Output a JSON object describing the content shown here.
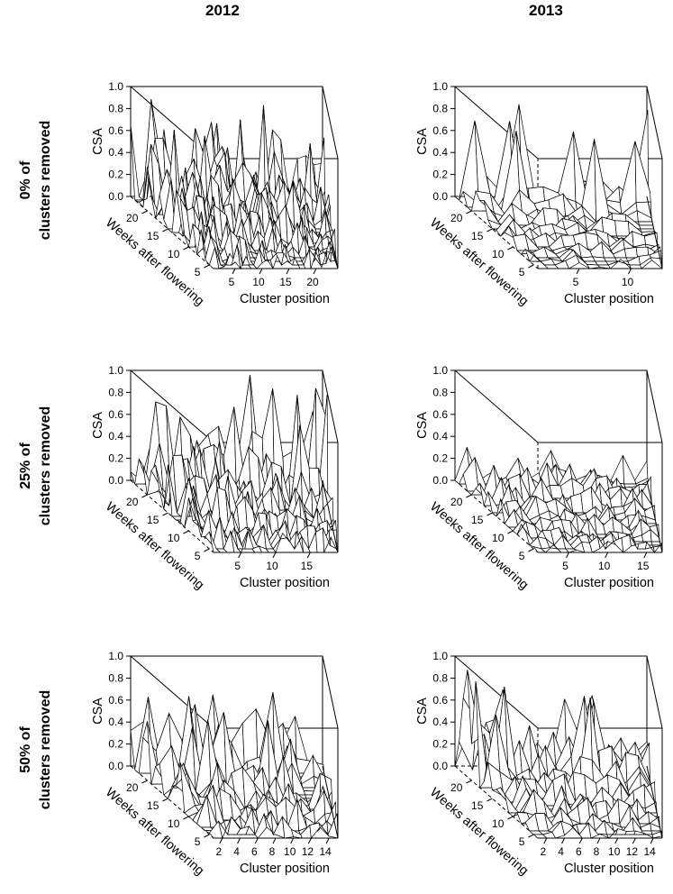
{
  "columns": [
    {
      "title": "2012"
    },
    {
      "title": "2013"
    }
  ],
  "rows": [
    {
      "label_line1": "0% of",
      "label_line2": "clusters removed"
    },
    {
      "label_line1": "25% of",
      "label_line2": "clusters removed"
    },
    {
      "label_line1": "50% of",
      "label_line2": "clusters removed"
    }
  ],
  "chart_data": [
    {
      "type": "surface3d",
      "year": "2012",
      "removed": "0%",
      "zlabel": "CSA",
      "ylabel": "Weeks after flowering",
      "xlabel": "Cluster position",
      "z_ticks": [
        "0.0",
        "0.2",
        "0.4",
        "0.6",
        "0.8",
        "1.0"
      ],
      "y_ticks": [
        "5",
        "10",
        "15",
        "20"
      ],
      "x_ticks": [
        "5",
        "10",
        "15",
        "20"
      ],
      "x_range": [
        1,
        24
      ],
      "y_range": [
        4,
        24
      ],
      "z_range": [
        0,
        1
      ],
      "cluster_positions": 24,
      "weeks": 21,
      "seed": 11,
      "amp_min": 0.18,
      "amp_max": 0.75,
      "peaks": 1.0
    },
    {
      "type": "surface3d",
      "year": "2013",
      "removed": "0%",
      "zlabel": "CSA",
      "ylabel": "Weeks after flowering",
      "xlabel": "Cluster position",
      "z_ticks": [
        "0.0",
        "0.2",
        "0.4",
        "0.6",
        "0.8",
        "1.0"
      ],
      "y_ticks": [
        "5",
        "10",
        "15",
        "20"
      ],
      "x_ticks": [
        "5",
        "10"
      ],
      "x_range": [
        1,
        13
      ],
      "y_range": [
        4,
        24
      ],
      "z_range": [
        0,
        1
      ],
      "cluster_positions": 13,
      "weeks": 21,
      "seed": 23,
      "amp_min": 0.1,
      "amp_max": 0.3,
      "peaks": 1.0
    },
    {
      "type": "surface3d",
      "year": "2012",
      "removed": "25%",
      "zlabel": "CSA",
      "ylabel": "Weeks after flowering",
      "xlabel": "Cluster position",
      "z_ticks": [
        "0.0",
        "0.2",
        "0.4",
        "0.6",
        "0.8",
        "1.0"
      ],
      "y_ticks": [
        "5",
        "10",
        "15",
        "20"
      ],
      "x_ticks": [
        "5",
        "10",
        "15"
      ],
      "x_range": [
        1,
        19
      ],
      "y_range": [
        4,
        24
      ],
      "z_range": [
        0,
        1
      ],
      "cluster_positions": 19,
      "weeks": 21,
      "seed": 37,
      "amp_min": 0.2,
      "amp_max": 0.8,
      "peaks": 1.0
    },
    {
      "type": "surface3d",
      "year": "2013",
      "removed": "25%",
      "zlabel": "CSA",
      "ylabel": "Weeks after flowering",
      "xlabel": "Cluster position",
      "z_ticks": [
        "0.0",
        "0.2",
        "0.4",
        "0.6",
        "0.8",
        "1.0"
      ],
      "y_ticks": [
        "5",
        "10",
        "15",
        "20"
      ],
      "x_ticks": [
        "5",
        "10",
        "15"
      ],
      "x_range": [
        1,
        17
      ],
      "y_range": [
        4,
        24
      ],
      "z_range": [
        0,
        1
      ],
      "cluster_positions": 17,
      "weeks": 21,
      "seed": 41,
      "amp_min": 0.12,
      "amp_max": 0.34,
      "peaks": 0.0
    },
    {
      "type": "surface3d",
      "year": "2012",
      "removed": "50%",
      "zlabel": "CSA",
      "ylabel": "Weeks after flowering",
      "xlabel": "Cluster position",
      "z_ticks": [
        "0.0",
        "0.2",
        "0.4",
        "0.6",
        "0.8",
        "1.0"
      ],
      "y_ticks": [
        "5",
        "10",
        "15",
        "20"
      ],
      "x_ticks": [
        "2",
        "4",
        "6",
        "8",
        "10",
        "12",
        "14"
      ],
      "x_range": [
        1,
        15
      ],
      "y_range": [
        4,
        24
      ],
      "z_range": [
        0,
        1
      ],
      "cluster_positions": 15,
      "weeks": 21,
      "seed": 53,
      "amp_min": 0.2,
      "amp_max": 0.78,
      "peaks": 1.0
    },
    {
      "type": "surface3d",
      "year": "2013",
      "removed": "50%",
      "zlabel": "CSA",
      "ylabel": "Weeks after flowering",
      "xlabel": "Cluster position",
      "z_ticks": [
        "0.0",
        "0.2",
        "0.4",
        "0.6",
        "0.8",
        "1.0"
      ],
      "y_ticks": [
        "5",
        "10",
        "15",
        "20"
      ],
      "x_ticks": [
        "2",
        "4",
        "6",
        "8",
        "10",
        "12",
        "14"
      ],
      "x_range": [
        1,
        15
      ],
      "y_range": [
        4,
        24
      ],
      "z_range": [
        0,
        1
      ],
      "cluster_positions": 15,
      "weeks": 21,
      "seed": 67,
      "amp_min": 0.12,
      "amp_max": 0.58,
      "peaks": 1.0
    }
  ]
}
